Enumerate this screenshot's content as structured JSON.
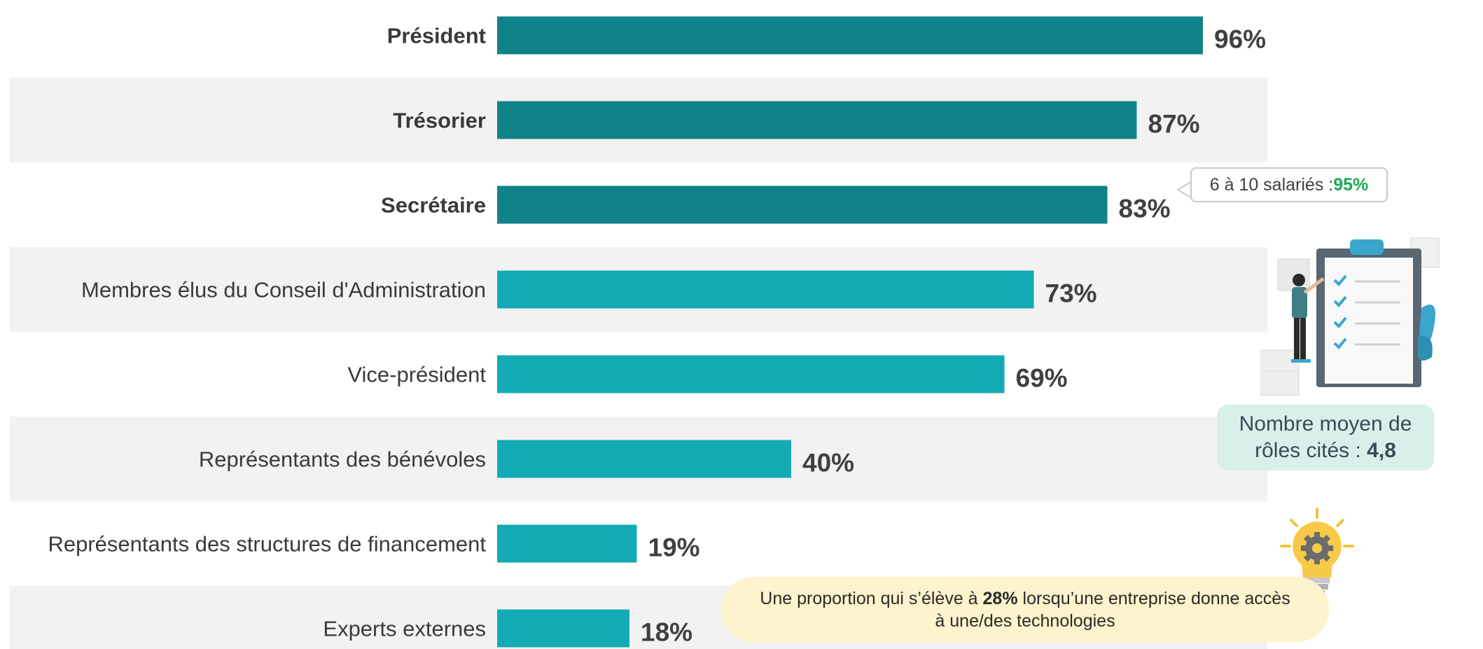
{
  "chart_data": {
    "type": "bar",
    "orientation": "horizontal",
    "categories": [
      "Président",
      "Trésorier",
      "Secrétaire",
      "Membres élus du Conseil d'Administration",
      "Vice-président",
      "Représentants des bénévoles",
      "Représentants des structures de financement",
      "Experts externes"
    ],
    "values": [
      96,
      87,
      83,
      73,
      69,
      40,
      19,
      18
    ],
    "value_labels": [
      "96%",
      "87%",
      "83%",
      "73%",
      "69%",
      "40%",
      "19%",
      "18%"
    ],
    "highlighted": [
      true,
      true,
      true,
      false,
      false,
      false,
      false,
      false
    ],
    "colors": {
      "highlight": "#11828a",
      "default": "#12abb5",
      "band": "#f2f2f2"
    },
    "xlim": [
      0,
      100
    ],
    "title": "",
    "xlabel": "",
    "ylabel": "",
    "grid": false,
    "legend": "none"
  },
  "callout": {
    "text": "6 à 10 salariés : ",
    "value": "95%"
  },
  "average": {
    "line1": "Nombre moyen de",
    "line2": "rôles cités : ",
    "value": "4,8"
  },
  "note": {
    "pre": "Une proportion qui s’élève à ",
    "value": "28%",
    "post": " lorsqu’une entreprise donne accès",
    "line2": "à une/des technologies"
  },
  "icons": [
    "checklist-illustration-icon",
    "lightbulb-gear-icon"
  ]
}
